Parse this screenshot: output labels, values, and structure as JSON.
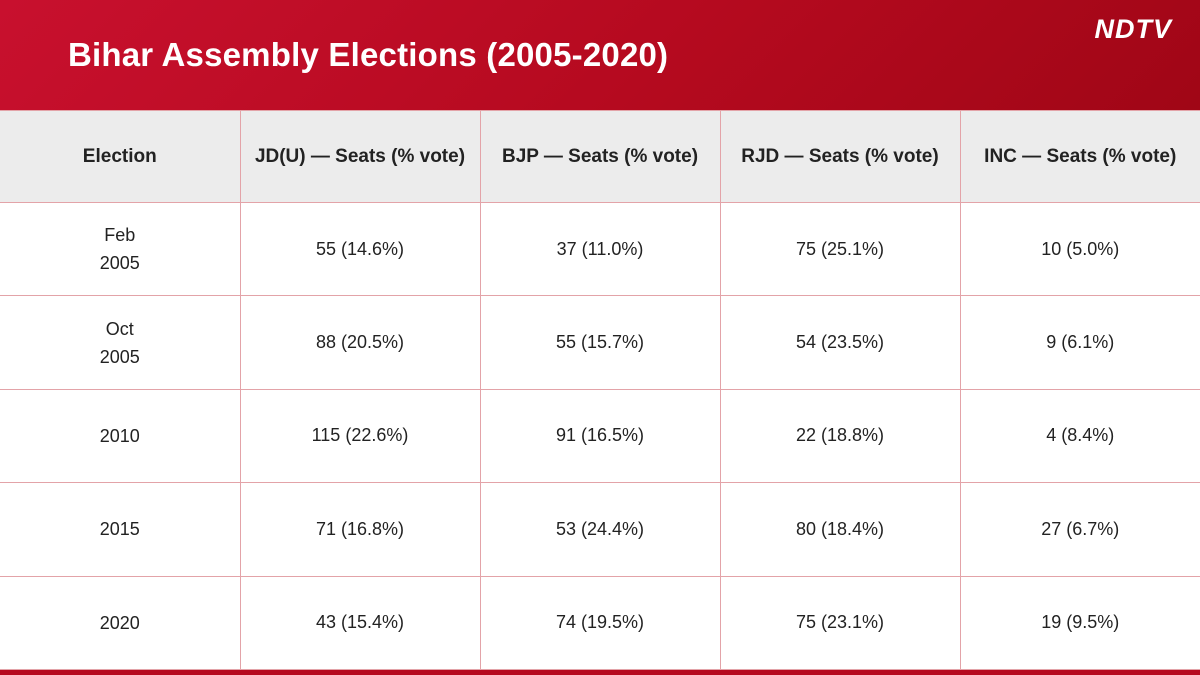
{
  "header": {
    "title": "Bihar Assembly Elections (2005-2020)",
    "logo_text": "NDTV"
  },
  "table": {
    "columns": [
      "Election",
      "JD(U) — Seats (% vote)",
      "BJP — Seats (% vote)",
      "RJD — Seats (% vote)",
      "INC — Seats (% vote)"
    ],
    "rows": [
      {
        "election": [
          "Feb",
          "2005"
        ],
        "jdu": "55 (14.6%)",
        "bjp": "37 (11.0%)",
        "rjd": "75 (25.1%)",
        "inc": "10 (5.0%)"
      },
      {
        "election": [
          "Oct",
          "2005"
        ],
        "jdu": "88 (20.5%)",
        "bjp": "55 (15.7%)",
        "rjd": "54 (23.5%)",
        "inc": "9 (6.1%)"
      },
      {
        "election": [
          "2010"
        ],
        "jdu": "115 (22.6%)",
        "bjp": "91 (16.5%)",
        "rjd": "22 (18.8%)",
        "inc": "4 (8.4%)"
      },
      {
        "election": [
          "2015"
        ],
        "jdu": "71 (16.8%)",
        "bjp": "53 (24.4%)",
        "rjd": "80 (18.4%)",
        "inc": "27 (6.7%)"
      },
      {
        "election": [
          "2020"
        ],
        "jdu": "43 (15.4%)",
        "bjp": "74 (19.5%)",
        "rjd": "75 (23.1%)",
        "inc": "19 (9.5%)"
      }
    ]
  },
  "colors": {
    "header_red": "#c8102e",
    "grid_line": "#e3a3a8",
    "header_row_bg": "#ececec"
  }
}
